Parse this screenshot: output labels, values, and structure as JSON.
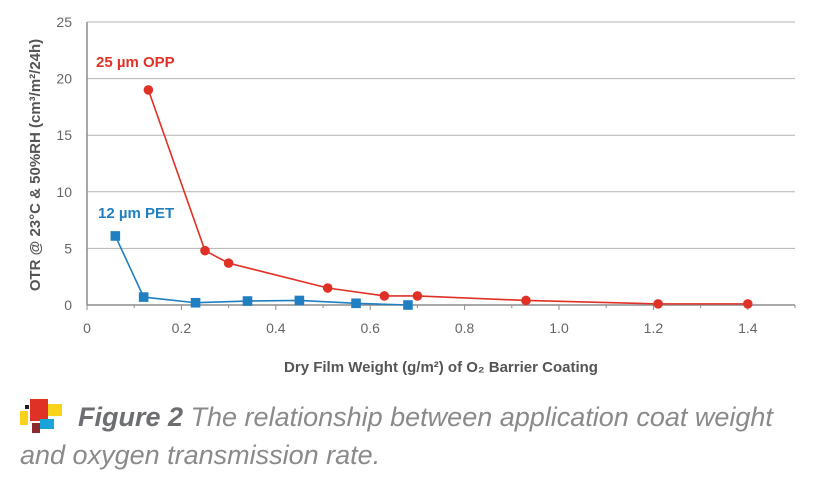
{
  "chart_data": {
    "type": "line",
    "xlabel": "Dry Film Weight (g/m²) of O₂ Barrier Coating",
    "ylabel": "OTR @ 23°C & 50%RH (cm³/m²/24h)",
    "xlim": [
      0,
      1.5
    ],
    "ylim": [
      0,
      25
    ],
    "xticks": [
      0,
      0.2,
      0.4,
      0.6,
      0.8,
      1.0,
      1.2,
      1.4
    ],
    "xtick_labels": [
      "0",
      "0.2",
      "0.4",
      "0.6",
      "0.8",
      "1.0",
      "1.2",
      "1.4"
    ],
    "yticks": [
      0,
      5,
      10,
      15,
      20,
      25
    ],
    "ytick_labels": [
      "0",
      "5",
      "10",
      "15",
      "20",
      "25"
    ],
    "grid": "horizontal",
    "series": [
      {
        "name": "25 µm OPP",
        "color": "#e03127",
        "marker": "circle",
        "x": [
          0.13,
          0.25,
          0.3,
          0.51,
          0.63,
          0.7,
          0.93,
          1.21,
          1.4
        ],
        "y": [
          19.0,
          4.8,
          3.7,
          1.5,
          0.8,
          0.8,
          0.4,
          0.1,
          0.1
        ]
      },
      {
        "name": "12 µm PET",
        "color": "#1f7fc1",
        "marker": "square",
        "x": [
          0.06,
          0.12,
          0.23,
          0.34,
          0.45,
          0.57,
          0.68
        ],
        "y": [
          6.1,
          0.7,
          0.2,
          0.35,
          0.4,
          0.15,
          0.0
        ]
      }
    ]
  },
  "caption": {
    "label": "Figure 2",
    "text": " The relationship between application coat weight and oxygen transmission rate."
  },
  "colors": {
    "grid": "#b3b3b3",
    "axis": "#8c8c8c",
    "caption_text": "#8a8a8a",
    "logo": [
      "#e03127",
      "#f8d21b",
      "#1aa3d9",
      "#8b2b2b",
      "#1d1d1b"
    ]
  }
}
